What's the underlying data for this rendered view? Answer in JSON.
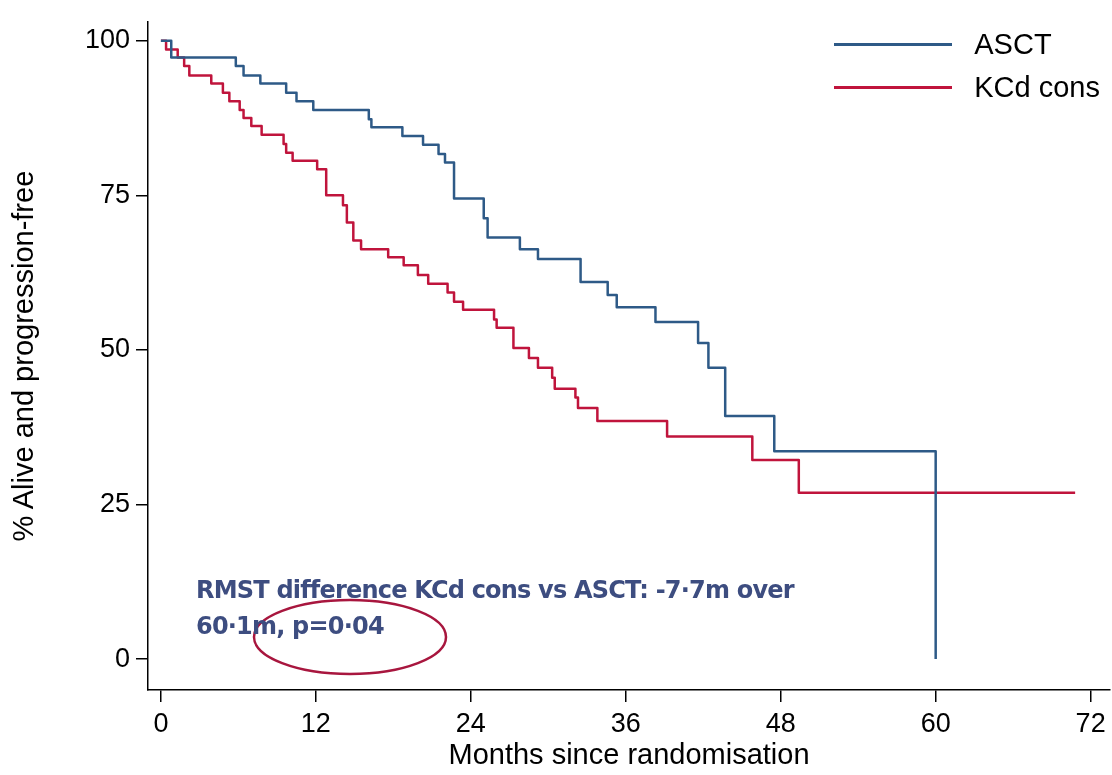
{
  "chart_data": {
    "type": "step",
    "xlabel": "Months since randomisation",
    "ylabel": "% Alive and progression-free",
    "xlim": [
      -1,
      73.5
    ],
    "ylim": [
      -5,
      103
    ],
    "xticks": [
      0,
      12,
      24,
      36,
      48,
      60,
      72
    ],
    "yticks": [
      0,
      25,
      50,
      75,
      100
    ],
    "grid": false,
    "legend": "top right",
    "marker": "none",
    "line_style": "solid",
    "annotations": [
      "RMST difference KCd cons vs ASCT: -7·7m over 60·1m, p=0·04"
    ],
    "series": [
      {
        "name": "ASCT",
        "color": "#2e5a87",
        "x": [
          0,
          0.8,
          5.8,
          6.4,
          7.7,
          9.7,
          10.5,
          11.8,
          16.1,
          16.3,
          18.7,
          20.3,
          21.5,
          22,
          22.7,
          25,
          25.3,
          27.8,
          29.2,
          32.5,
          34.6,
          35.3,
          38.3,
          41.6,
          42.4,
          43.7,
          47.5,
          60
        ],
        "values": [
          100,
          97.3,
          95.9,
          94.4,
          93.1,
          91.6,
          90.2,
          88.8,
          87.3,
          86,
          84.6,
          83.2,
          81.7,
          80.3,
          74.5,
          71.3,
          68.2,
          66.3,
          64.7,
          61,
          58.9,
          56.9,
          54.5,
          51.1,
          47.1,
          39.3,
          33.6,
          0
        ]
      },
      {
        "name": "KCd cons",
        "color": "#c0143c",
        "x": [
          0,
          0.4,
          1.3,
          1.8,
          2.2,
          3.9,
          4.8,
          5.3,
          6.1,
          6.4,
          7,
          7.8,
          9.5,
          9.7,
          10.2,
          12.1,
          12.8,
          14.1,
          14.4,
          14.9,
          15.5,
          17.6,
          18.8,
          19.9,
          20.7,
          22.2,
          22.7,
          23.4,
          25.8,
          26,
          27.3,
          28.5,
          29.2,
          30.3,
          30.5,
          32.1,
          32.3,
          33.8,
          39.2,
          45.8,
          49.4,
          70.8
        ],
        "values": [
          100,
          98.6,
          97.3,
          95.9,
          94.4,
          93.1,
          91.6,
          90.2,
          88.8,
          87.5,
          86.2,
          84.8,
          83.3,
          81.9,
          80.6,
          79.2,
          75,
          73.4,
          70.6,
          67.7,
          66.3,
          65,
          63.7,
          62.1,
          60.7,
          59.3,
          57.8,
          56.5,
          54.9,
          53.6,
          50.3,
          48.7,
          47.1,
          45.5,
          43.7,
          42.3,
          40.6,
          38.5,
          36,
          32.2,
          26.9,
          26.9
        ]
      }
    ]
  }
}
